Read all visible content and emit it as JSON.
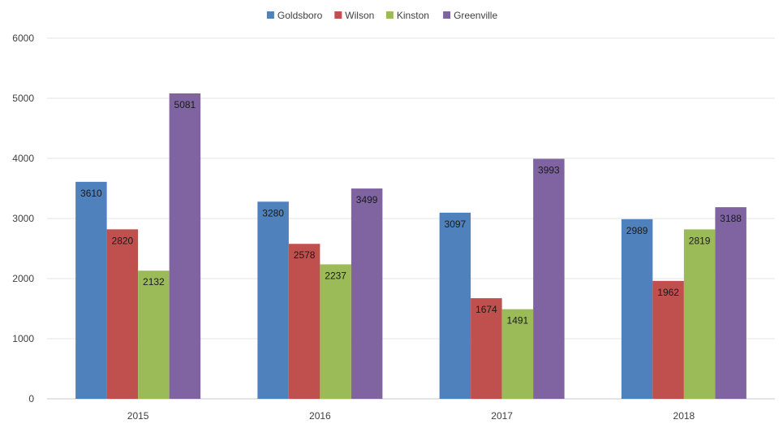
{
  "chart_data": {
    "type": "bar",
    "title": "",
    "xlabel": "",
    "ylabel": "",
    "categories": [
      "2015",
      "2016",
      "2017",
      "2018"
    ],
    "ylim": [
      0,
      6000
    ],
    "yticks": [
      "0",
      "1000",
      "2000",
      "3000",
      "4000",
      "5000",
      "6000"
    ],
    "grid": true,
    "legend_position": "top",
    "series": [
      {
        "name": "Goldsboro",
        "color": "#4f81bd",
        "values": [
          3610,
          3280,
          3097,
          2989
        ]
      },
      {
        "name": "Wilson",
        "color": "#c0504d",
        "values": [
          2820,
          2578,
          1674,
          1962
        ]
      },
      {
        "name": "Kinston",
        "color": "#9bbb59",
        "values": [
          2132,
          2237,
          1491,
          2819
        ]
      },
      {
        "name": "Greenville",
        "color": "#8064a2",
        "values": [
          5081,
          3499,
          3993,
          3188
        ]
      }
    ]
  }
}
